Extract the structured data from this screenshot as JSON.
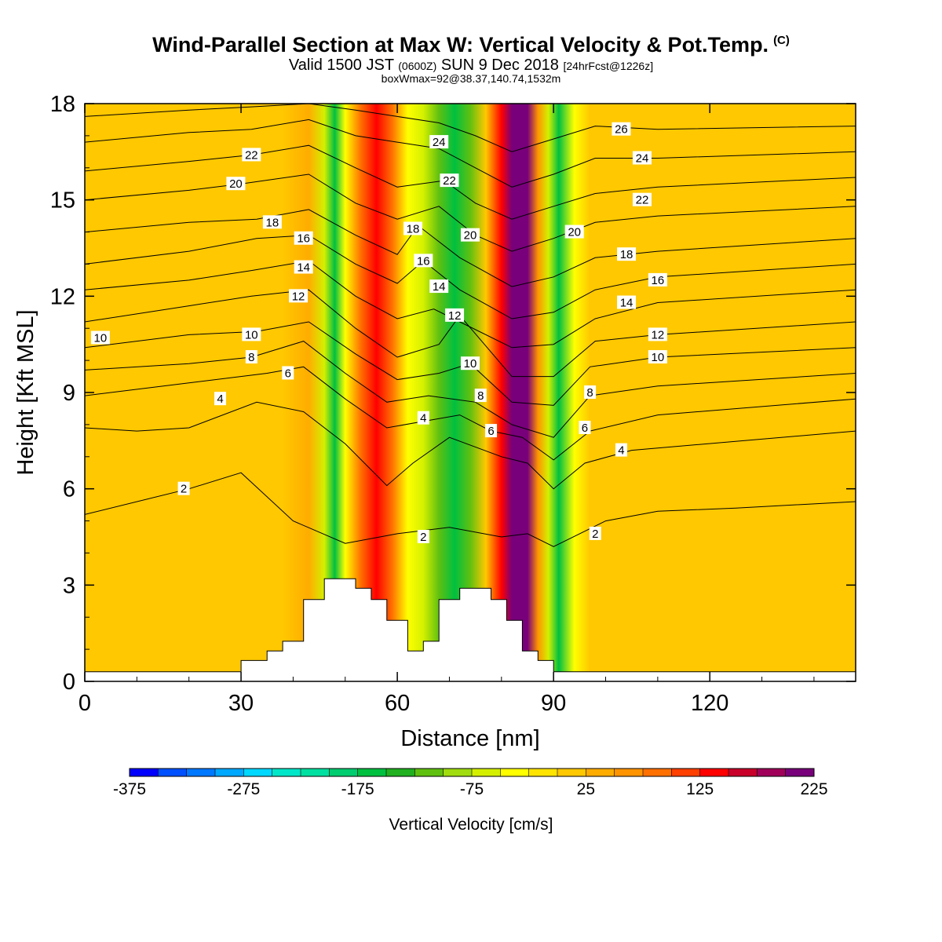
{
  "chart_data": {
    "type": "heatmap",
    "title": "Wind-Parallel Section at Max W: Vertical Velocity & Pot.Temp.",
    "title_mark": "(C)",
    "subtitle": {
      "prefix": "Valid 1500 JST",
      "utc": "(0600Z)",
      "date": "SUN 9 Dec 2018",
      "forecast": "[24hrFcst@1226z]"
    },
    "annotation": "boxWmax=92@38.37,140.74,1532m",
    "xlabel": "Distance [nm]",
    "ylabel": "Height [Kft MSL]",
    "xlim": [
      0,
      148
    ],
    "ylim": [
      0,
      18
    ],
    "x_ticks": [
      0,
      30,
      60,
      90,
      120
    ],
    "y_ticks": [
      0,
      3,
      6,
      9,
      12,
      15,
      18
    ],
    "colorbar": {
      "label": "Vertical Velocity [cm/s]",
      "tick_labels": [
        "-375",
        "-275",
        "-175",
        "-75",
        "25",
        "125",
        "225"
      ],
      "range": [
        -375,
        225
      ],
      "step": 25,
      "colors": [
        "#0000ff",
        "#0050ff",
        "#0078ff",
        "#00a8ff",
        "#00d8ff",
        "#00e6c8",
        "#00e0a0",
        "#00cc70",
        "#00c040",
        "#20b020",
        "#60c010",
        "#a0dc10",
        "#d4f000",
        "#ffff00",
        "#ffe400",
        "#ffc800",
        "#ffac00",
        "#ff9400",
        "#ff7000",
        "#ff4000",
        "#ff0000",
        "#c8002a",
        "#a0005a",
        "#78007a"
      ]
    },
    "vertical_velocity_bands": [
      {
        "x": 0,
        "w": 0
      },
      {
        "x": 33,
        "w": 5
      },
      {
        "x": 38,
        "w": 22
      },
      {
        "x": 43,
        "w": 30
      },
      {
        "x": 46,
        "w": -75
      },
      {
        "x": 48,
        "w": -175
      },
      {
        "x": 50,
        "w": -30
      },
      {
        "x": 53,
        "w": 90
      },
      {
        "x": 56,
        "w": 140
      },
      {
        "x": 59,
        "w": 80
      },
      {
        "x": 62,
        "w": -30
      },
      {
        "x": 65,
        "w": -75
      },
      {
        "x": 68,
        "w": -120
      },
      {
        "x": 71,
        "w": -160
      },
      {
        "x": 74,
        "w": -110
      },
      {
        "x": 77,
        "w": 0
      },
      {
        "x": 80,
        "w": 140
      },
      {
        "x": 82,
        "w": 215
      },
      {
        "x": 85,
        "w": 200
      },
      {
        "x": 87,
        "w": 60
      },
      {
        "x": 89,
        "w": -75
      },
      {
        "x": 91,
        "w": -170
      },
      {
        "x": 94,
        "w": -50
      },
      {
        "x": 97,
        "w": 20
      },
      {
        "x": 102,
        "w": 5
      },
      {
        "x": 148,
        "w": 0
      }
    ],
    "terrain_kft": [
      {
        "x": 0,
        "z": 0.3
      },
      {
        "x": 30,
        "z": 0.3
      },
      {
        "x": 30,
        "z": 0.65
      },
      {
        "x": 35,
        "z": 0.65
      },
      {
        "x": 35,
        "z": 0.95
      },
      {
        "x": 38,
        "z": 0.95
      },
      {
        "x": 38,
        "z": 1.25
      },
      {
        "x": 42,
        "z": 1.25
      },
      {
        "x": 42,
        "z": 2.55
      },
      {
        "x": 46,
        "z": 2.55
      },
      {
        "x": 46,
        "z": 3.2
      },
      {
        "x": 52,
        "z": 3.2
      },
      {
        "x": 52,
        "z": 2.9
      },
      {
        "x": 55,
        "z": 2.9
      },
      {
        "x": 55,
        "z": 2.55
      },
      {
        "x": 58,
        "z": 2.55
      },
      {
        "x": 58,
        "z": 1.9
      },
      {
        "x": 62,
        "z": 1.9
      },
      {
        "x": 62,
        "z": 0.95
      },
      {
        "x": 65,
        "z": 0.95
      },
      {
        "x": 65,
        "z": 1.25
      },
      {
        "x": 68,
        "z": 1.25
      },
      {
        "x": 68,
        "z": 2.55
      },
      {
        "x": 72,
        "z": 2.55
      },
      {
        "x": 72,
        "z": 2.9
      },
      {
        "x": 78,
        "z": 2.9
      },
      {
        "x": 78,
        "z": 2.55
      },
      {
        "x": 81,
        "z": 2.55
      },
      {
        "x": 81,
        "z": 1.9
      },
      {
        "x": 84,
        "z": 1.9
      },
      {
        "x": 84,
        "z": 0.95
      },
      {
        "x": 87,
        "z": 0.95
      },
      {
        "x": 87,
        "z": 0.65
      },
      {
        "x": 90,
        "z": 0.65
      },
      {
        "x": 90,
        "z": 0.3
      },
      {
        "x": 148,
        "z": 0.3
      }
    ],
    "isentropes": [
      {
        "label": "2",
        "points": [
          [
            0,
            5.2
          ],
          [
            20,
            6.0
          ],
          [
            30,
            6.5
          ],
          [
            40,
            5.0
          ],
          [
            50,
            4.3
          ],
          [
            60,
            4.6
          ],
          [
            70,
            4.8
          ],
          [
            80,
            4.5
          ],
          [
            85,
            4.6
          ],
          [
            90,
            4.2
          ],
          [
            100,
            5.0
          ],
          [
            110,
            5.3
          ],
          [
            125,
            5.4
          ],
          [
            148,
            5.6
          ]
        ],
        "labels_at": [
          [
            19,
            6.0
          ],
          [
            65,
            4.5
          ],
          [
            98,
            4.6
          ]
        ]
      },
      {
        "label": "4",
        "points": [
          [
            0,
            7.9
          ],
          [
            10,
            7.8
          ],
          [
            20,
            7.9
          ],
          [
            33,
            8.7
          ],
          [
            42,
            8.4
          ],
          [
            50,
            7.4
          ],
          [
            58,
            6.1
          ],
          [
            63,
            6.8
          ],
          [
            70,
            7.6
          ],
          [
            80,
            7.0
          ],
          [
            85,
            6.8
          ],
          [
            90,
            6.0
          ],
          [
            96,
            6.8
          ],
          [
            105,
            7.2
          ],
          [
            148,
            7.8
          ]
        ],
        "labels_at": [
          [
            26,
            8.8
          ],
          [
            65,
            8.2
          ],
          [
            103,
            7.2
          ]
        ]
      },
      {
        "label": "6",
        "points": [
          [
            0,
            8.9
          ],
          [
            20,
            9.3
          ],
          [
            35,
            9.6
          ],
          [
            42,
            9.8
          ],
          [
            50,
            8.8
          ],
          [
            58,
            7.9
          ],
          [
            65,
            8.1
          ],
          [
            72,
            8.3
          ],
          [
            78,
            7.8
          ],
          [
            84,
            7.6
          ],
          [
            90,
            6.9
          ],
          [
            97,
            7.8
          ],
          [
            110,
            8.3
          ],
          [
            148,
            8.8
          ]
        ],
        "labels_at": [
          [
            39,
            9.6
          ],
          [
            78,
            7.8
          ],
          [
            96,
            7.9
          ]
        ]
      },
      {
        "label": "8",
        "points": [
          [
            0,
            9.7
          ],
          [
            20,
            9.9
          ],
          [
            32,
            10.1
          ],
          [
            42,
            10.6
          ],
          [
            50,
            9.6
          ],
          [
            58,
            8.7
          ],
          [
            66,
            8.9
          ],
          [
            75,
            8.7
          ],
          [
            82,
            8.0
          ],
          [
            90,
            7.6
          ],
          [
            97,
            8.9
          ],
          [
            110,
            9.2
          ],
          [
            148,
            9.6
          ]
        ],
        "labels_at": [
          [
            32,
            10.1
          ],
          [
            76,
            8.9
          ],
          [
            97,
            9.0
          ]
        ]
      },
      {
        "label": "10",
        "points": [
          [
            0,
            10.4
          ],
          [
            20,
            10.8
          ],
          [
            33,
            10.9
          ],
          [
            43,
            11.2
          ],
          [
            52,
            10.2
          ],
          [
            60,
            9.4
          ],
          [
            68,
            9.6
          ],
          [
            74,
            9.9
          ],
          [
            82,
            8.7
          ],
          [
            90,
            8.6
          ],
          [
            97,
            9.8
          ],
          [
            110,
            10.1
          ],
          [
            148,
            10.4
          ]
        ],
        "labels_at": [
          [
            3,
            10.7
          ],
          [
            32,
            10.8
          ],
          [
            74,
            9.9
          ],
          [
            110,
            10.1
          ]
        ]
      },
      {
        "label": "12",
        "points": [
          [
            0,
            11.2
          ],
          [
            20,
            11.7
          ],
          [
            32,
            12.0
          ],
          [
            43,
            12.2
          ],
          [
            52,
            11.0
          ],
          [
            60,
            10.1
          ],
          [
            68,
            10.5
          ],
          [
            72,
            11.4
          ],
          [
            82,
            9.5
          ],
          [
            90,
            9.5
          ],
          [
            98,
            10.6
          ],
          [
            110,
            10.8
          ],
          [
            148,
            11.2
          ]
        ],
        "labels_at": [
          [
            41,
            12.0
          ],
          [
            71,
            11.4
          ],
          [
            110,
            10.8
          ]
        ]
      },
      {
        "label": "14",
        "points": [
          [
            0,
            12.2
          ],
          [
            20,
            12.5
          ],
          [
            32,
            12.8
          ],
          [
            43,
            13.1
          ],
          [
            52,
            12.0
          ],
          [
            60,
            11.3
          ],
          [
            67,
            11.6
          ],
          [
            72,
            11.2
          ],
          [
            82,
            10.4
          ],
          [
            90,
            10.5
          ],
          [
            98,
            11.3
          ],
          [
            110,
            11.8
          ],
          [
            148,
            12.2
          ]
        ],
        "labels_at": [
          [
            42,
            12.9
          ],
          [
            68,
            12.3
          ],
          [
            104,
            11.8
          ]
        ]
      },
      {
        "label": "16",
        "points": [
          [
            0,
            13.0
          ],
          [
            20,
            13.4
          ],
          [
            33,
            13.8
          ],
          [
            43,
            13.9
          ],
          [
            52,
            13.0
          ],
          [
            60,
            12.4
          ],
          [
            65,
            13.1
          ],
          [
            72,
            12.2
          ],
          [
            82,
            11.3
          ],
          [
            90,
            11.5
          ],
          [
            98,
            12.2
          ],
          [
            110,
            12.6
          ],
          [
            148,
            13.0
          ]
        ],
        "labels_at": [
          [
            42,
            13.8
          ],
          [
            65,
            13.1
          ],
          [
            110,
            12.5
          ]
        ]
      },
      {
        "label": "18",
        "points": [
          [
            0,
            14.0
          ],
          [
            20,
            14.3
          ],
          [
            33,
            14.4
          ],
          [
            43,
            14.7
          ],
          [
            52,
            13.9
          ],
          [
            60,
            13.3
          ],
          [
            64,
            14.2
          ],
          [
            72,
            13.2
          ],
          [
            82,
            12.3
          ],
          [
            90,
            12.6
          ],
          [
            98,
            13.2
          ],
          [
            110,
            13.4
          ],
          [
            148,
            13.8
          ]
        ],
        "labels_at": [
          [
            36,
            14.3
          ],
          [
            63,
            14.1
          ],
          [
            104,
            13.3
          ]
        ]
      },
      {
        "label": "20",
        "points": [
          [
            0,
            15.0
          ],
          [
            20,
            15.3
          ],
          [
            30,
            15.5
          ],
          [
            43,
            15.8
          ],
          [
            52,
            14.9
          ],
          [
            60,
            14.4
          ],
          [
            68,
            14.8
          ],
          [
            75,
            13.9
          ],
          [
            82,
            13.4
          ],
          [
            90,
            13.8
          ],
          [
            98,
            14.3
          ],
          [
            110,
            14.5
          ],
          [
            148,
            14.8
          ]
        ],
        "labels_at": [
          [
            29,
            15.5
          ],
          [
            74,
            13.9
          ],
          [
            94,
            14.0
          ]
        ]
      },
      {
        "label": "22",
        "points": [
          [
            0,
            15.9
          ],
          [
            20,
            16.2
          ],
          [
            32,
            16.4
          ],
          [
            43,
            16.7
          ],
          [
            52,
            16.0
          ],
          [
            60,
            15.4
          ],
          [
            69,
            15.6
          ],
          [
            75,
            14.9
          ],
          [
            82,
            14.4
          ],
          [
            90,
            14.8
          ],
          [
            98,
            15.2
          ],
          [
            110,
            15.4
          ],
          [
            148,
            15.7
          ]
        ],
        "labels_at": [
          [
            32,
            16.4
          ],
          [
            70,
            15.6
          ],
          [
            107,
            15.0
          ]
        ]
      },
      {
        "label": "24",
        "points": [
          [
            0,
            16.8
          ],
          [
            20,
            17.1
          ],
          [
            32,
            17.2
          ],
          [
            43,
            17.5
          ],
          [
            52,
            17.0
          ],
          [
            60,
            16.8
          ],
          [
            68,
            16.6
          ],
          [
            75,
            16.0
          ],
          [
            82,
            15.4
          ],
          [
            90,
            15.8
          ],
          [
            98,
            16.3
          ],
          [
            110,
            16.3
          ],
          [
            148,
            16.5
          ]
        ],
        "labels_at": [
          [
            68,
            16.8
          ],
          [
            107,
            16.3
          ]
        ]
      },
      {
        "label": "26",
        "points": [
          [
            0,
            17.6
          ],
          [
            20,
            17.8
          ],
          [
            32,
            17.9
          ],
          [
            43,
            18.0
          ],
          [
            52,
            17.8
          ],
          [
            60,
            17.6
          ],
          [
            68,
            17.4
          ],
          [
            75,
            17.0
          ],
          [
            82,
            16.5
          ],
          [
            90,
            16.9
          ],
          [
            98,
            17.3
          ],
          [
            110,
            17.2
          ],
          [
            148,
            17.3
          ]
        ],
        "labels_at": [
          [
            103,
            17.2
          ]
        ]
      }
    ]
  }
}
